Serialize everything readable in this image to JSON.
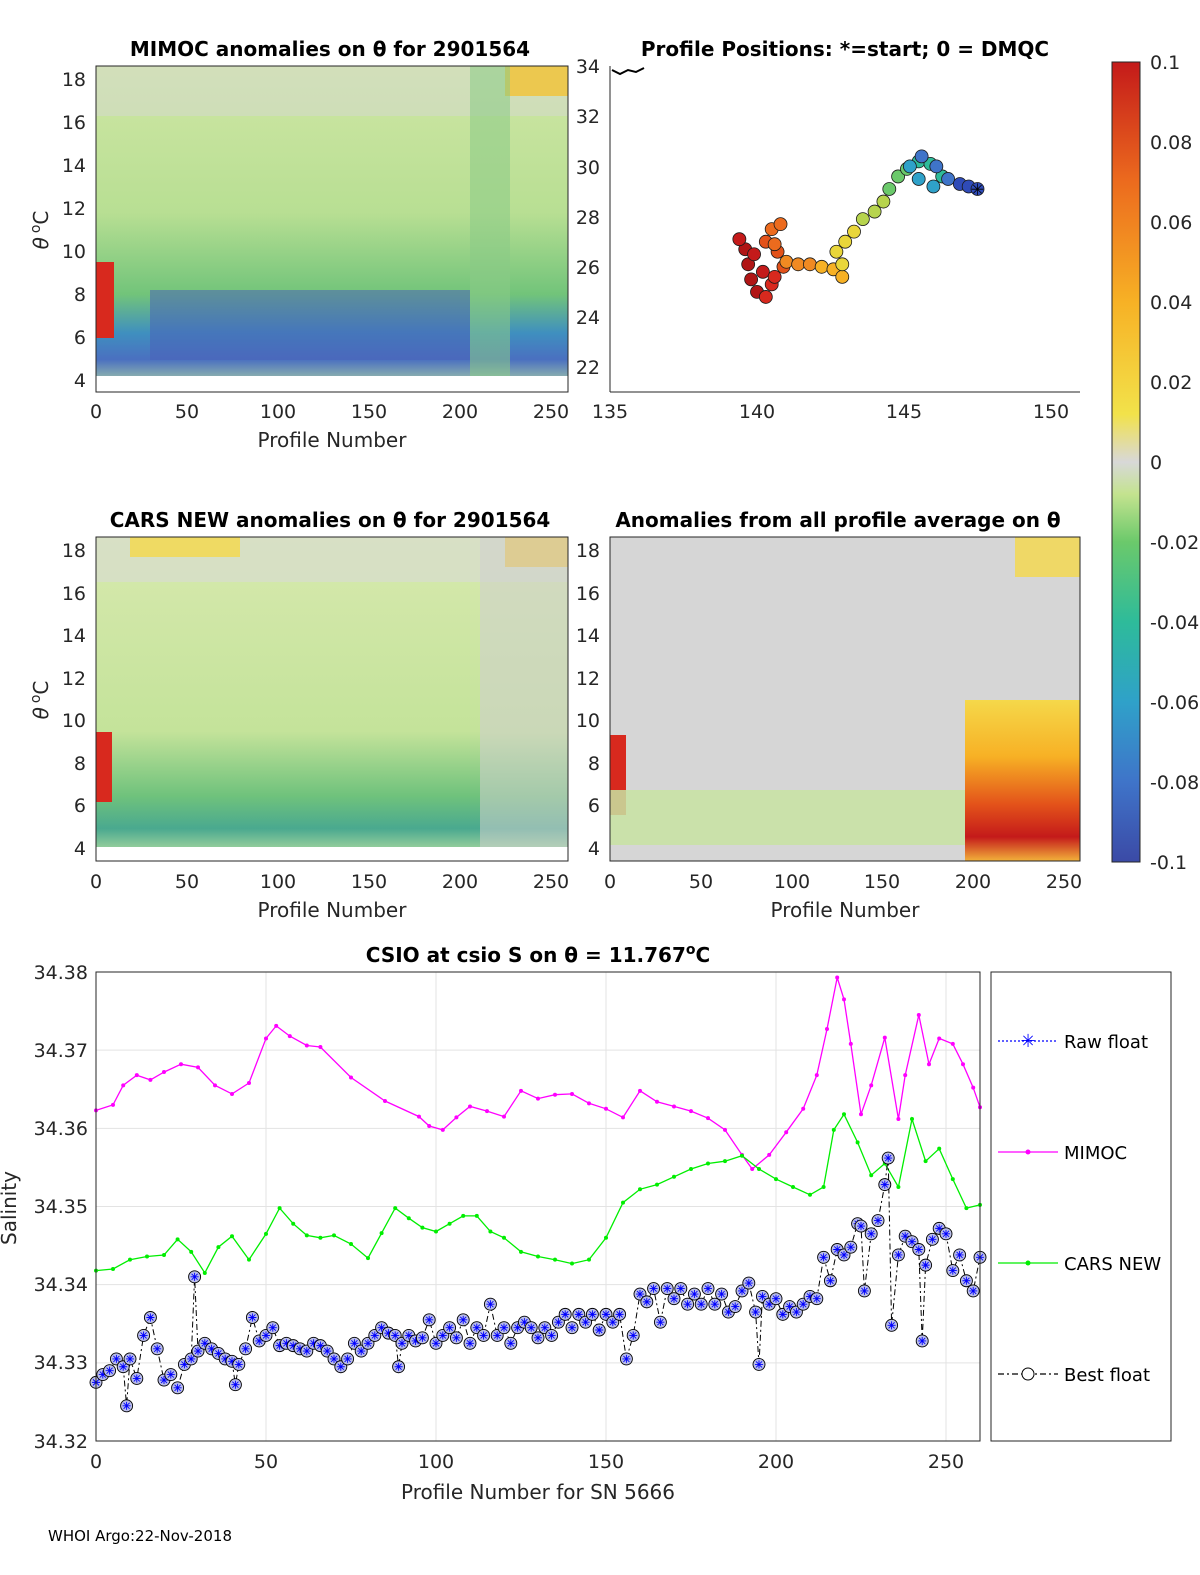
{
  "titles": {
    "mimoc": "MIMOC anomalies on θ  for 2901564",
    "positions": "Profile Positions: *=start; 0 = DMQC",
    "cars": "CARS NEW anomalies on θ for 2901564",
    "anoms": "Anomalies from all profile average on θ",
    "csio_pre": "CSIO at csio S on θ = 11.767",
    "csio_sup": "o",
    "csio_post": "C"
  },
  "axes": {
    "theta_label": "θ",
    "theta_sup": "o",
    "theta_unit": "C",
    "profile_number": "Profile Number",
    "profile_number_sn": "Profile Number for SN 5666",
    "salinity": "Salinity",
    "theta_ticks": [
      "18",
      "16",
      "14",
      "12",
      "10",
      "8",
      "6",
      "4"
    ],
    "profile_ticks": [
      "0",
      "50",
      "100",
      "150",
      "200",
      "250"
    ],
    "lat_ticks": [
      "34",
      "32",
      "30",
      "28",
      "26",
      "24",
      "22"
    ],
    "lon_ticks": [
      "135",
      "140",
      "145",
      "150"
    ],
    "sal_ticks": [
      "34.38",
      "34.37",
      "34.36",
      "34.35",
      "34.34",
      "34.33",
      "34.32"
    ],
    "sn_ticks": [
      "0",
      "50",
      "100",
      "150",
      "200",
      "250"
    ]
  },
  "colorbar": {
    "ticks": [
      "0.1",
      "0.08",
      "0.06",
      "0.04",
      "0.02",
      "0",
      "-0.02",
      "-0.04",
      "-0.06",
      "-0.08",
      "-0.1"
    ],
    "colors": [
      "#3b4aa6",
      "#3f74c9",
      "#2fa1c9",
      "#2ebb9a",
      "#6bc96b",
      "#c4e38f",
      "#d8d8d8",
      "#f2e24a",
      "#f7b125",
      "#ec6b1e",
      "#c41a1a"
    ]
  },
  "legend": {
    "raw": "Raw float",
    "mimoc": "MIMOC",
    "cars": "CARS NEW",
    "best": "Best float"
  },
  "footer": "WHOI Argo:22-Nov-2018",
  "colors": {
    "mimoc": "#ff00ff",
    "cars": "#00ee00",
    "best": "#000000",
    "raw": "#0000ff"
  },
  "chart_data": {
    "type": "line",
    "title": "CSIO at csio S on θ = 11.767°C",
    "xlabel": "Profile Number for SN 5666",
    "ylabel": "Salinity",
    "xlim": [
      0,
      260
    ],
    "ylim": [
      34.32,
      34.38
    ],
    "series": [
      {
        "name": "MIMOC",
        "x": [
          0,
          5,
          8,
          12,
          16,
          20,
          25,
          30,
          35,
          40,
          45,
          50,
          53,
          57,
          62,
          66,
          75,
          85,
          95,
          98,
          102,
          106,
          110,
          115,
          120,
          125,
          130,
          135,
          140,
          145,
          150,
          155,
          160,
          165,
          170,
          175,
          180,
          185,
          190,
          193,
          198,
          203,
          208,
          212,
          215,
          218,
          220,
          222,
          225,
          228,
          232,
          236,
          238,
          242,
          245,
          248,
          252,
          255,
          258,
          260
        ],
        "y": [
          34.3623,
          34.363,
          34.3655,
          34.3668,
          34.3662,
          34.3672,
          34.3682,
          34.3678,
          34.3655,
          34.3644,
          34.3658,
          34.3715,
          34.3731,
          34.3718,
          34.3706,
          34.3704,
          34.3665,
          34.3635,
          34.3615,
          34.3603,
          34.3598,
          34.3614,
          34.3628,
          34.3622,
          34.3615,
          34.3648,
          34.3638,
          34.3643,
          34.3644,
          34.3632,
          34.3625,
          34.3614,
          34.3648,
          34.3634,
          34.3628,
          34.3622,
          34.3613,
          34.3598,
          34.3566,
          34.3548,
          34.3566,
          34.3595,
          34.3625,
          34.3668,
          34.3727,
          34.3793,
          34.3765,
          34.3708,
          34.3618,
          34.3655,
          34.3716,
          34.3612,
          34.3668,
          34.3745,
          34.3682,
          34.3715,
          34.3708,
          34.3682,
          34.3652,
          34.3627
        ]
      },
      {
        "name": "CARS NEW",
        "x": [
          0,
          5,
          10,
          15,
          20,
          24,
          28,
          32,
          36,
          40,
          45,
          50,
          54,
          58,
          62,
          66,
          70,
          75,
          80,
          84,
          88,
          92,
          96,
          100,
          104,
          108,
          112,
          116,
          120,
          125,
          130,
          135,
          140,
          145,
          150,
          155,
          160,
          165,
          170,
          175,
          180,
          185,
          190,
          195,
          200,
          205,
          210,
          214,
          217,
          220,
          224,
          228,
          232,
          236,
          240,
          244,
          248,
          252,
          256,
          260
        ],
        "y": [
          34.3418,
          34.342,
          34.3432,
          34.3436,
          34.3438,
          34.3458,
          34.3442,
          34.3415,
          34.3448,
          34.3462,
          34.3432,
          34.3465,
          34.3498,
          34.3478,
          34.3463,
          34.346,
          34.3463,
          34.3452,
          34.3434,
          34.3466,
          34.3498,
          34.3485,
          34.3473,
          34.3468,
          34.3478,
          34.3488,
          34.3488,
          34.3468,
          34.346,
          34.3442,
          34.3436,
          34.3432,
          34.3427,
          34.3432,
          34.346,
          34.3505,
          34.3522,
          34.3528,
          34.3538,
          34.3548,
          34.3555,
          34.3558,
          34.3565,
          34.3548,
          34.3535,
          34.3525,
          34.3515,
          34.3525,
          34.3598,
          34.3618,
          34.3582,
          34.354,
          34.3555,
          34.3525,
          34.3612,
          34.3558,
          34.3574,
          34.3535,
          34.3498,
          34.3502
        ]
      },
      {
        "name": "Best float",
        "x": [
          0,
          2,
          4,
          6,
          8,
          9,
          10,
          12,
          14,
          16,
          18,
          20,
          22,
          24,
          26,
          28,
          29,
          30,
          32,
          34,
          36,
          38,
          40,
          41,
          42,
          44,
          46,
          48,
          50,
          52,
          54,
          56,
          58,
          60,
          62,
          64,
          66,
          68,
          70,
          72,
          74,
          76,
          78,
          80,
          82,
          84,
          86,
          88,
          89,
          90,
          92,
          94,
          96,
          98,
          100,
          102,
          104,
          106,
          108,
          110,
          112,
          114,
          116,
          118,
          120,
          122,
          124,
          126,
          128,
          130,
          132,
          134,
          136,
          138,
          140,
          142,
          144,
          146,
          148,
          150,
          152,
          154,
          156,
          158,
          160,
          162,
          164,
          166,
          168,
          170,
          172,
          174,
          176,
          178,
          180,
          182,
          184,
          186,
          188,
          190,
          192,
          194,
          195,
          196,
          198,
          200,
          202,
          204,
          206,
          208,
          210,
          212,
          214,
          216,
          218,
          220,
          222,
          224,
          225,
          226,
          228,
          230,
          232,
          233,
          234,
          236,
          238,
          240,
          242,
          243,
          244,
          246,
          248,
          250,
          252,
          254,
          256,
          258,
          260
        ],
        "y": [
          34.3275,
          34.3285,
          34.329,
          34.3305,
          34.3295,
          34.3245,
          34.3305,
          34.328,
          34.3335,
          34.3358,
          34.3318,
          34.3278,
          34.3285,
          34.3268,
          34.3298,
          34.3305,
          34.341,
          34.3315,
          34.3325,
          34.3318,
          34.3312,
          34.3305,
          34.3302,
          34.3272,
          34.3298,
          34.3318,
          34.3358,
          34.3328,
          34.3335,
          34.3345,
          34.3322,
          34.3325,
          34.3322,
          34.3318,
          34.3315,
          34.3325,
          34.3322,
          34.3315,
          34.3305,
          34.3295,
          34.3305,
          34.3325,
          34.3315,
          34.3325,
          34.3335,
          34.3345,
          34.3338,
          34.3335,
          34.3295,
          34.3325,
          34.3335,
          34.3328,
          34.3332,
          34.3355,
          34.3325,
          34.3335,
          34.3345,
          34.3332,
          34.3355,
          34.3325,
          34.3345,
          34.3335,
          34.3375,
          34.3335,
          34.3345,
          34.3325,
          34.3345,
          34.3352,
          34.3345,
          34.3332,
          34.3345,
          34.3335,
          34.3352,
          34.3362,
          34.3345,
          34.3362,
          34.3352,
          34.3362,
          34.3342,
          34.3362,
          34.3352,
          34.3362,
          34.3305,
          34.3335,
          34.3388,
          34.3378,
          34.3395,
          34.3352,
          34.3395,
          34.3382,
          34.3395,
          34.3375,
          34.3388,
          34.3375,
          34.3395,
          34.3375,
          34.3388,
          34.3365,
          34.3372,
          34.3392,
          34.3402,
          34.3365,
          34.3298,
          34.3385,
          34.3375,
          34.3382,
          34.3362,
          34.3372,
          34.3365,
          34.3375,
          34.3385,
          34.3382,
          34.3435,
          34.3405,
          34.3445,
          34.3438,
          34.3448,
          34.3478,
          34.3475,
          34.3392,
          34.3465,
          34.3482,
          34.3528,
          34.3562,
          34.3348,
          34.3438,
          34.3462,
          34.3455,
          34.3445,
          34.3328,
          34.3425,
          34.3458,
          34.3472,
          34.3465,
          34.3418,
          34.3438,
          34.3405,
          34.3392,
          34.3435
        ]
      },
      {
        "name": "Raw float",
        "x": [],
        "y": []
      }
    ]
  }
}
